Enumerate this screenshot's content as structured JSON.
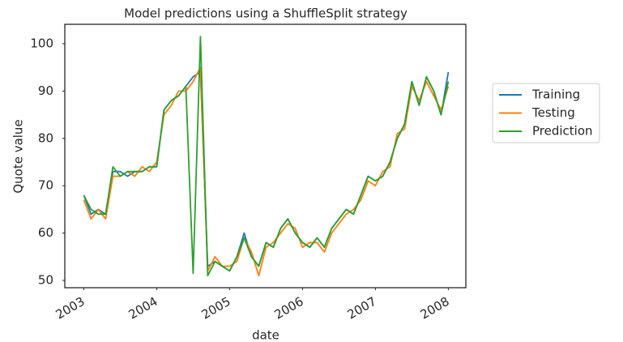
{
  "chart_data": {
    "type": "line",
    "title": "Model predictions using a ShuffleSplit strategy",
    "x_label": "date",
    "y_label": "Quote value",
    "x": [
      2003.0,
      2003.1,
      2003.2,
      2003.3,
      2003.4,
      2003.5,
      2003.6,
      2003.7,
      2003.8,
      2003.9,
      2004.0,
      2004.1,
      2004.2,
      2004.3,
      2004.4,
      2004.5,
      2004.6,
      2004.7,
      2004.8,
      2004.9,
      2005.0,
      2005.1,
      2005.2,
      2005.3,
      2005.4,
      2005.5,
      2005.6,
      2005.7,
      2005.8,
      2005.9,
      2006.0,
      2006.1,
      2006.2,
      2006.3,
      2006.4,
      2006.5,
      2006.6,
      2006.7,
      2006.8,
      2006.9,
      2007.0,
      2007.1,
      2007.2,
      2007.3,
      2007.4,
      2007.5,
      2007.6,
      2007.7,
      2007.8,
      2007.9,
      2008.0
    ],
    "series": [
      {
        "name": "Training",
        "color": "#1f77b4",
        "values": [
          68,
          64,
          65,
          64,
          73,
          73,
          72,
          73,
          73,
          74,
          74,
          86,
          88,
          89,
          91,
          93,
          94,
          53,
          54,
          53,
          52,
          55,
          60,
          55,
          53,
          58,
          57,
          61,
          63,
          60,
          58,
          57,
          59,
          57,
          61,
          63,
          65,
          64,
          68,
          72,
          71,
          72,
          75,
          80,
          83,
          92,
          87,
          93,
          90,
          85,
          94
        ]
      },
      {
        "name": "Testing",
        "color": "#ff7f0e",
        "values": [
          67,
          63,
          65,
          63,
          72,
          72,
          73,
          72,
          74,
          73,
          75,
          85,
          87,
          90,
          90,
          92,
          95,
          52,
          55,
          53,
          53,
          54,
          59,
          56,
          51,
          57,
          58,
          60,
          62,
          61,
          57,
          58,
          58,
          56,
          60,
          62,
          64,
          65,
          67,
          71,
          70,
          73,
          74,
          81,
          82,
          91,
          88,
          92,
          89,
          86,
          91
        ]
      },
      {
        "name": "Prediction",
        "color": "#2ca02c",
        "values": [
          68,
          65,
          64,
          64,
          74,
          72,
          73,
          73,
          73,
          74,
          74,
          86,
          88,
          89,
          91,
          51.5,
          101.5,
          51,
          54,
          53,
          52,
          55,
          59,
          55,
          53,
          58,
          57,
          61,
          63,
          60,
          58,
          57,
          59,
          57,
          61,
          63,
          65,
          64,
          68,
          72,
          71,
          72,
          75,
          80,
          83,
          92,
          87,
          93,
          90,
          85,
          92
        ]
      }
    ],
    "xlim": [
      2002.74,
      2008.24
    ],
    "xticks": [
      2003,
      2004,
      2005,
      2006,
      2007,
      2008
    ],
    "ylim": [
      48.46,
      104.1
    ],
    "yticks": [
      50,
      60,
      70,
      80,
      90,
      100
    ],
    "legend": "outside-right"
  }
}
